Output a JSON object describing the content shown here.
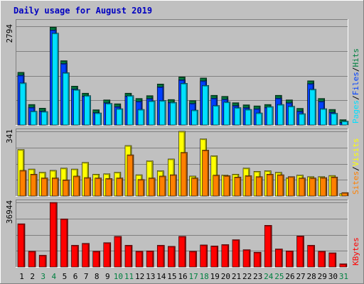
{
  "chart_data": {
    "type": "bar",
    "title": "Daily usage for August 2019",
    "categories": [
      "1",
      "2",
      "3",
      "4",
      "5",
      "6",
      "7",
      "8",
      "9",
      "10",
      "11",
      "12",
      "13",
      "14",
      "15",
      "16",
      "17",
      "18",
      "19",
      "20",
      "21",
      "22",
      "23",
      "24",
      "25",
      "26",
      "27",
      "28",
      "29",
      "30",
      "31"
    ],
    "weekend_days": [
      "3",
      "4",
      "10",
      "11",
      "17",
      "18",
      "24",
      "25",
      "31"
    ],
    "colors": {
      "background": "#c0c0c0",
      "title": "#0000c0",
      "hits": "#008040",
      "files": "#0040ff",
      "pages": "#00e0ff",
      "visits": "#ffff00",
      "sites": "#ff8000",
      "kbytes": "#ff0000",
      "weekday_label": "#000000",
      "weekend_label": "#008040",
      "grid": "#808080"
    },
    "panels": [
      {
        "id": "hits-files-pages",
        "max_label": "2794",
        "ymax": 2794,
        "legend": [
          {
            "text": "Pages",
            "color": "#00e0ff"
          },
          {
            "text": "Files",
            "color": "#0040ff"
          },
          {
            "text": "Hits",
            "color": "#008040"
          }
        ],
        "series": [
          {
            "name": "Hits",
            "values": [
              1490,
              580,
              475,
              2770,
              1820,
              1100,
              900,
              430,
              710,
              600,
              900,
              750,
              830,
              1160,
              720,
              1360,
              690,
              1330,
              840,
              810,
              630,
              570,
              540,
              580,
              840,
              710,
              470,
              1250,
              750,
              440,
              150
            ]
          },
          {
            "name": "Files",
            "values": [
              1490,
              580,
              475,
              2770,
              1820,
              1100,
              900,
              430,
              710,
              600,
              900,
              750,
              830,
              1160,
              720,
              1360,
              690,
              1330,
              840,
              810,
              630,
              570,
              540,
              580,
              840,
              710,
              470,
              1250,
              750,
              440,
              150
            ]
          },
          {
            "name": "Pages",
            "values": [
              1190,
              390,
              380,
              2600,
              1480,
              1000,
              830,
              340,
              610,
              460,
              830,
              440,
              680,
              690,
              640,
              1180,
              420,
              1120,
              550,
              650,
              490,
              440,
              340,
              520,
              580,
              530,
              320,
              1010,
              460,
              330,
              110
            ]
          }
        ]
      },
      {
        "id": "visits-sites",
        "max_label": "341",
        "ymax": 341,
        "legend": [
          {
            "text": "Sites",
            "color": "#ff8000"
          },
          {
            "text": "Visits",
            "color": "#ffff00"
          }
        ],
        "series": [
          {
            "name": "Visits",
            "values": [
              245,
              142,
              125,
              135,
              147,
              142,
              177,
              115,
              117,
              125,
              266,
              112,
              185,
              133,
              195,
              341,
              105,
              301,
              212,
              110,
              115,
              147,
              130,
              133,
              125,
              95,
              110,
              102,
              102,
              108,
              12
            ]
          },
          {
            "name": "Sites",
            "values": [
              135,
              115,
              95,
              95,
              85,
              105,
              97,
              95,
              92,
              95,
              217,
              87,
              95,
              105,
              112,
              230,
              95,
              242,
              110,
              107,
              100,
              107,
              102,
              115,
              112,
              102,
              95,
              95,
              97,
              100,
              18
            ]
          }
        ]
      },
      {
        "id": "kbytes",
        "max_label": "36944",
        "ymax": 36944,
        "legend": [
          {
            "text": "KBytes",
            "color": "#ff0000"
          }
        ],
        "series": [
          {
            "name": "KBytes",
            "values": [
              24700,
              8990,
              6700,
              36900,
              27500,
              12400,
              13500,
              8990,
              13900,
              17500,
              12400,
              8990,
              9210,
              12400,
              11800,
              17500,
              8990,
              12600,
              12000,
              12800,
              15600,
              9880,
              8440,
              23800,
              10300,
              9210,
              17700,
              12400,
              8990,
              8090,
              1800
            ]
          }
        ]
      }
    ]
  }
}
